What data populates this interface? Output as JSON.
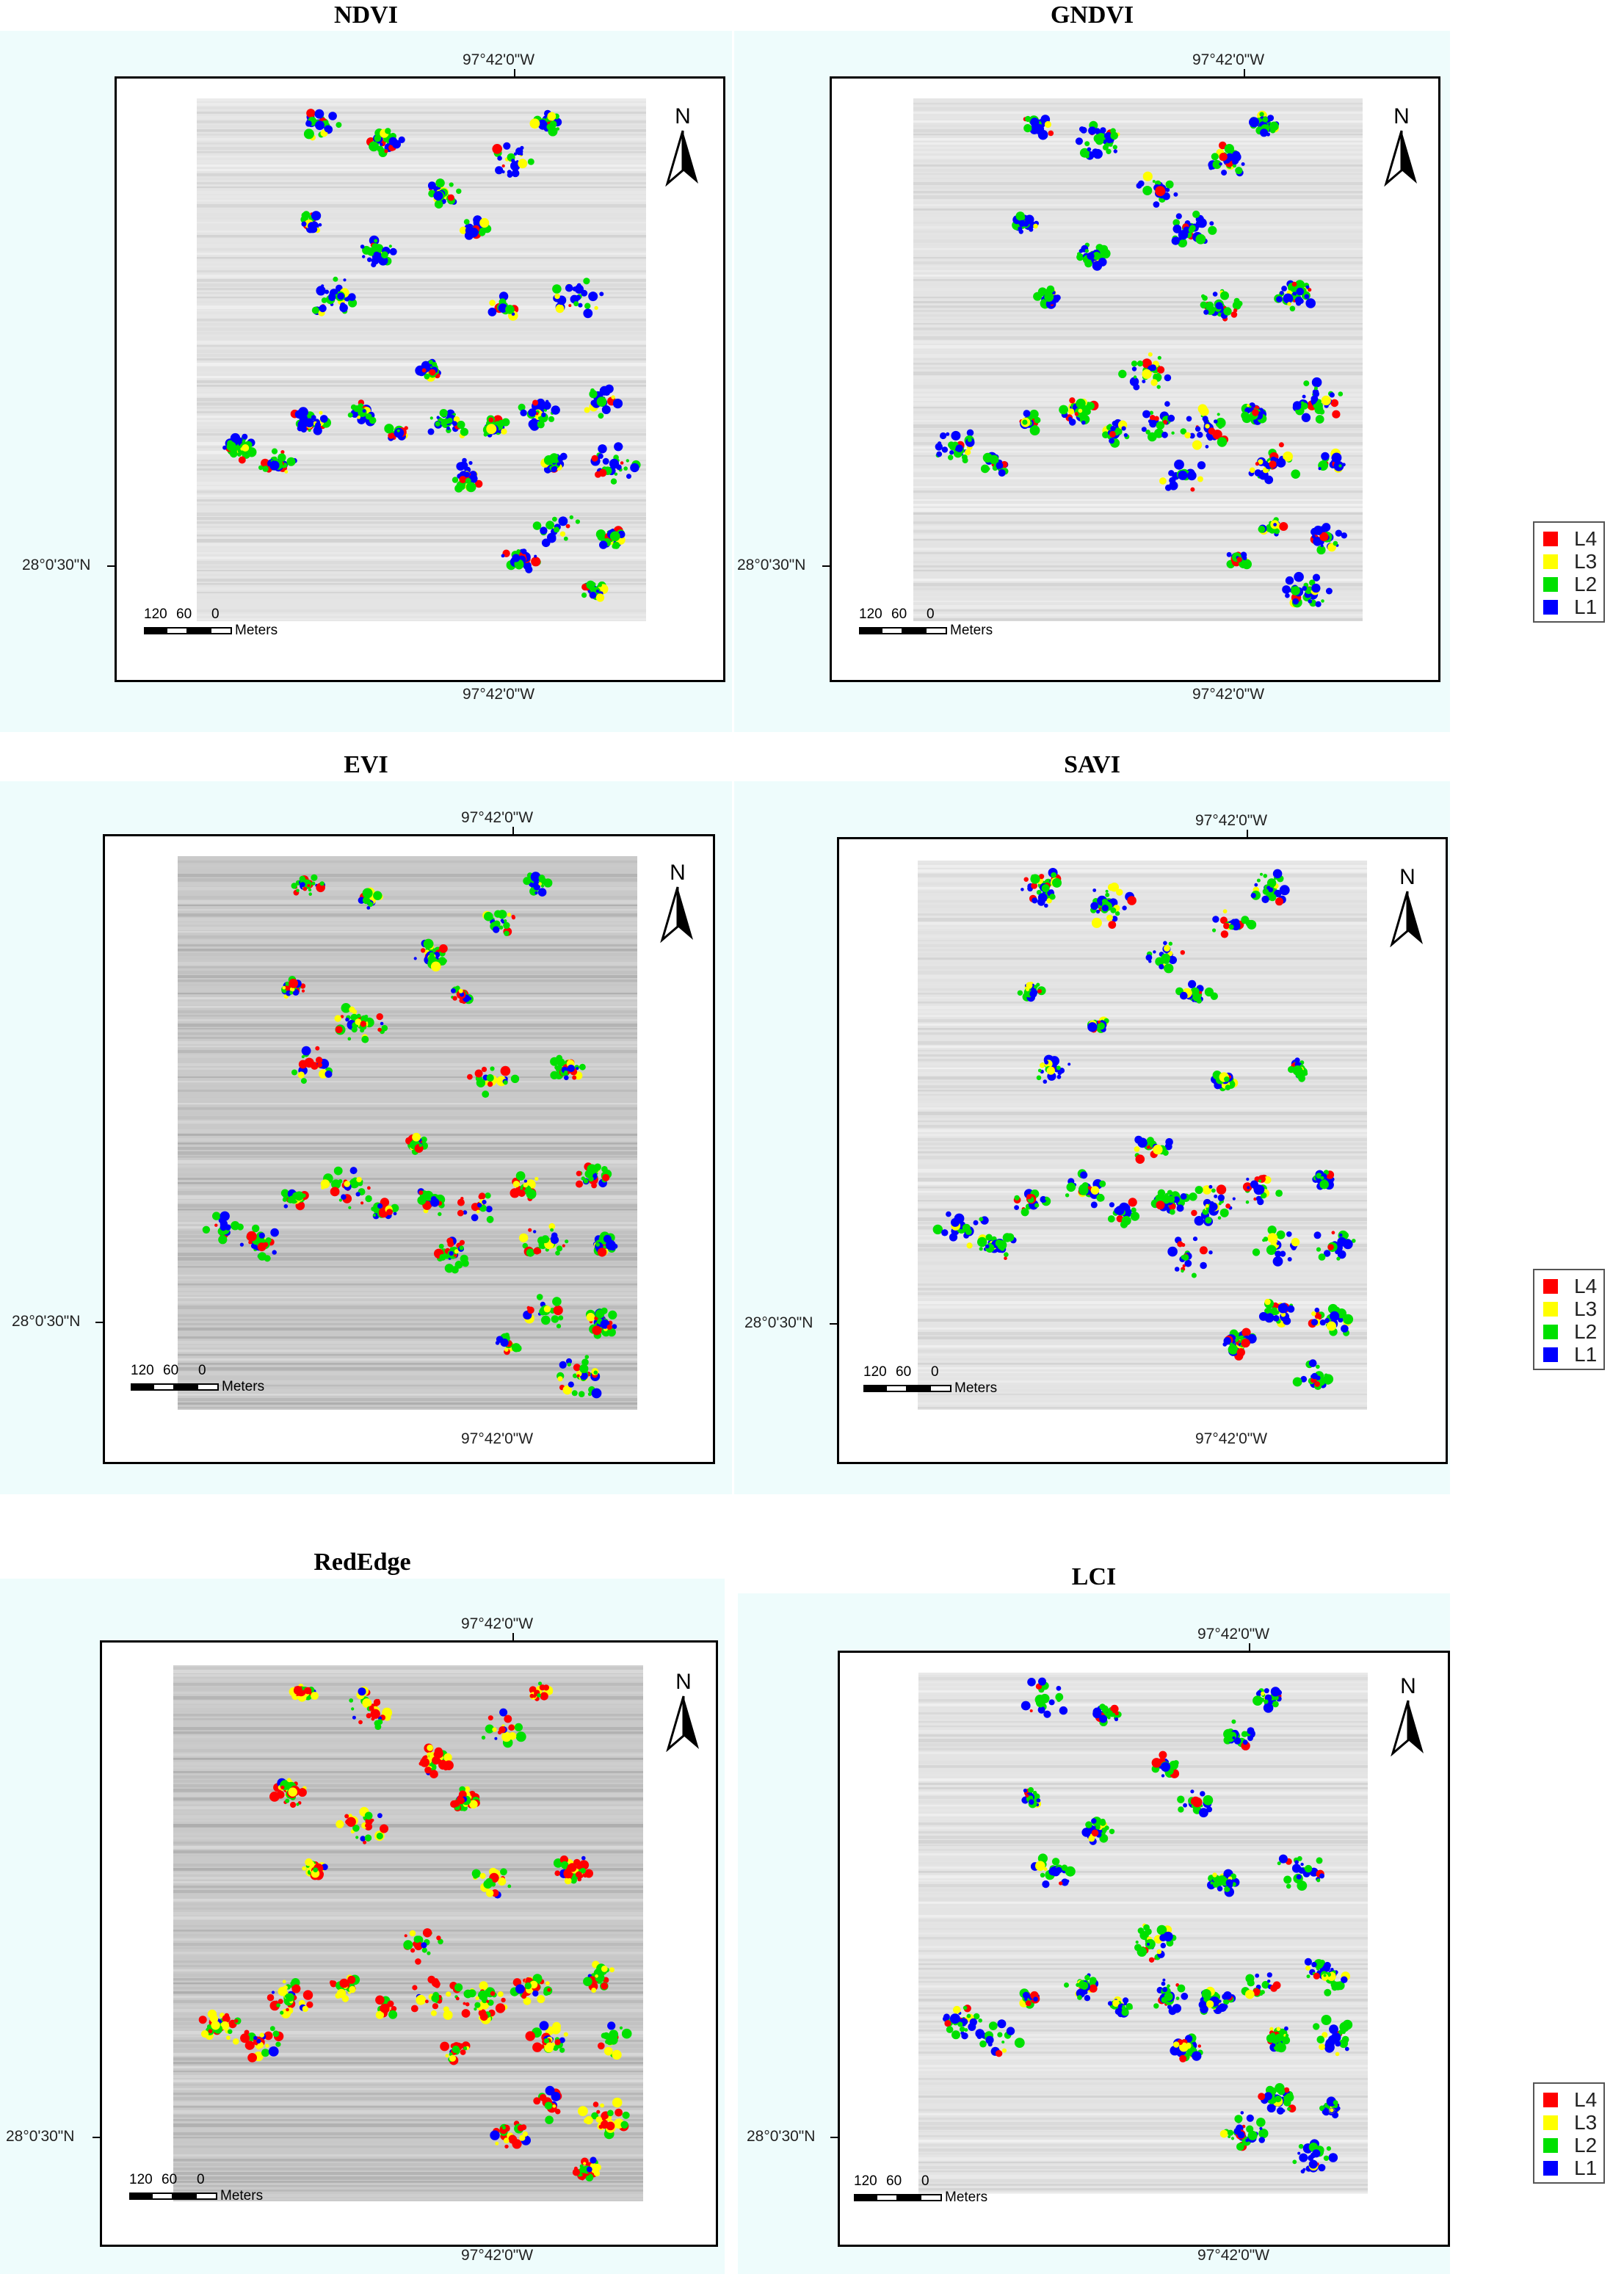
{
  "panels": [
    {
      "title": "NDVI",
      "lon_top": "97°42'0\"W",
      "lon_bottom": "97°42'0\"W",
      "lat_left": "28°0'30\"N",
      "north": "N",
      "scale": {
        "ticks": [
          "120",
          "60",
          "0"
        ],
        "unit": "Meters"
      },
      "level_mix": {
        "L4": 0.1,
        "L3": 0.08,
        "L2": 0.37,
        "L1": 0.45
      }
    },
    {
      "title": "GNDVI",
      "lon_top": "97°42'0\"W",
      "lon_bottom": "97°42'0\"W",
      "lat_left": "28°0'30\"N",
      "north": "N",
      "scale": {
        "ticks": [
          "120",
          "60",
          "0"
        ],
        "unit": "Meters"
      },
      "level_mix": {
        "L4": 0.08,
        "L3": 0.08,
        "L2": 0.42,
        "L1": 0.42
      }
    },
    {
      "title": "EVI",
      "lon_top": "97°42'0\"W",
      "lon_bottom": "97°42'0\"W",
      "lat_left": "28°0'30\"N",
      "north": "N",
      "scale": {
        "ticks": [
          "120",
          "60",
          "0"
        ],
        "unit": "Meters"
      },
      "level_mix": {
        "L4": 0.22,
        "L3": 0.12,
        "L2": 0.46,
        "L1": 0.2
      }
    },
    {
      "title": "SAVI",
      "lon_top": "97°42'0\"W",
      "lon_bottom": "97°42'0\"W",
      "lat_left": "28°0'30\"N",
      "north": "N",
      "scale": {
        "ticks": [
          "120",
          "60",
          "0"
        ],
        "unit": "Meters"
      },
      "level_mix": {
        "L4": 0.12,
        "L3": 0.1,
        "L2": 0.4,
        "L1": 0.38
      }
    },
    {
      "title": "RedEdge",
      "lon_top": "97°42'0\"W",
      "lon_bottom": "97°42'0\"W",
      "lat_left": "28°0'30\"N",
      "north": "N",
      "scale": {
        "ticks": [
          "120",
          "60",
          "0"
        ],
        "unit": "Meters"
      },
      "level_mix": {
        "L4": 0.38,
        "L3": 0.28,
        "L2": 0.28,
        "L1": 0.06
      }
    },
    {
      "title": "LCI",
      "lon_top": "97°42'0\"W",
      "lon_bottom": "97°42'0\"W",
      "lat_left": "28°0'30\"N",
      "north": "N",
      "scale": {
        "ticks": [
          "120",
          "60",
          "0"
        ],
        "unit": "Meters"
      },
      "level_mix": {
        "L4": 0.1,
        "L3": 0.1,
        "L2": 0.42,
        "L1": 0.38
      }
    }
  ],
  "legend": {
    "items": [
      {
        "label": "L4",
        "color": "#ff0000"
      },
      {
        "label": "L3",
        "color": "#ffff00"
      },
      {
        "label": "L2",
        "color": "#00e000"
      },
      {
        "label": "L1",
        "color": "#0000ff"
      }
    ]
  },
  "colors": {
    "panel_bg": "#eefcfc",
    "frame": "#000000"
  }
}
